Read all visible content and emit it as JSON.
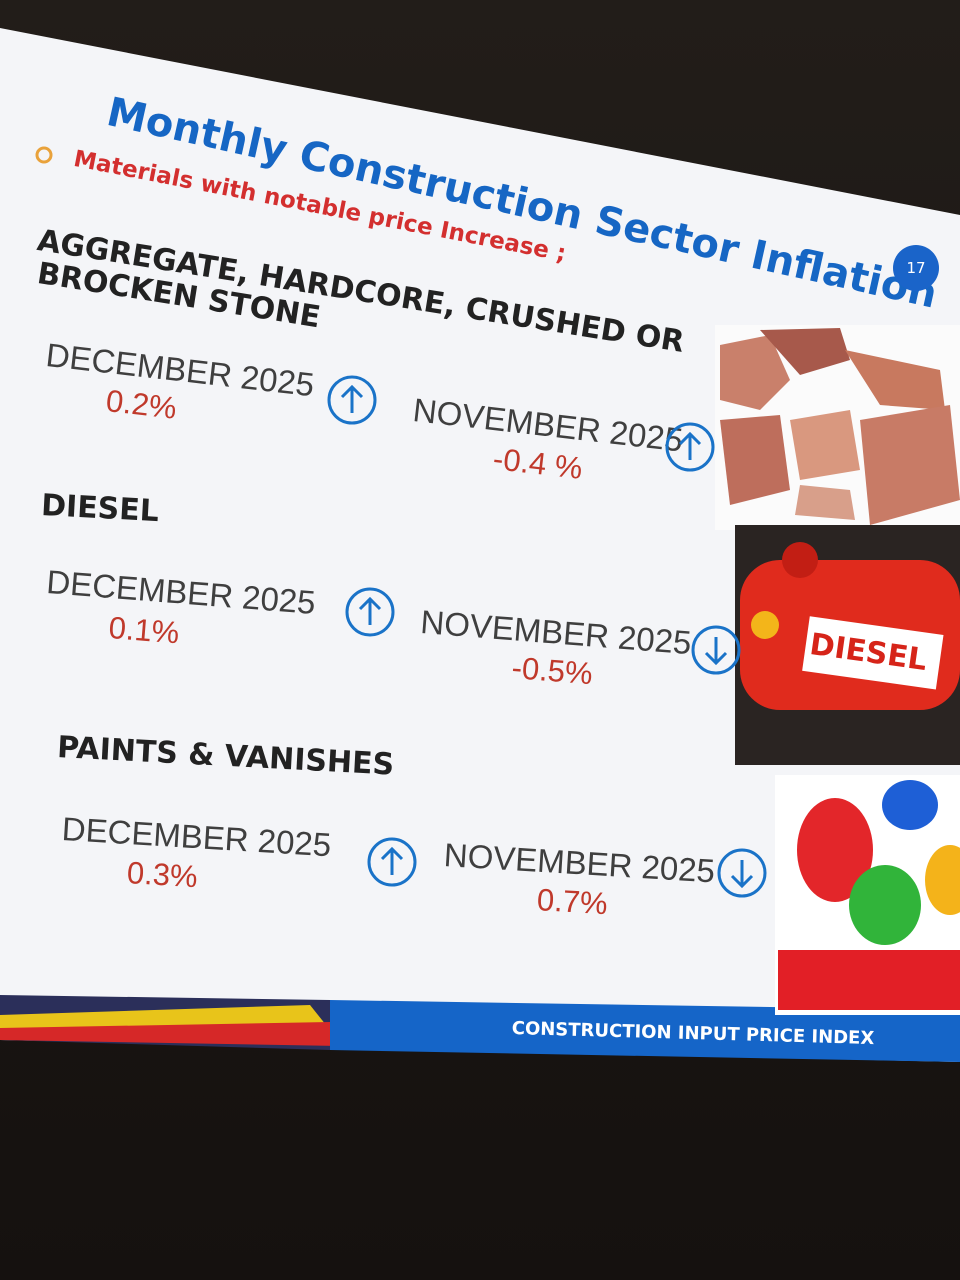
{
  "slide": {
    "title": "Monthly Construction Sector Inflation",
    "subtitle": "Materials with notable price Increase ;",
    "slide_number": "17",
    "sections": [
      {
        "name_lines": [
          "AGGREGATE, HARDCORE, CRUSHED OR",
          "BROCKEN STONE"
        ],
        "december_label": "DECEMBER 2025",
        "december_value": "0.2%",
        "december_arrow": "up",
        "november_label": "NOVEMBER 2025",
        "november_value": "-0.4 %",
        "november_arrow": "up"
      },
      {
        "name_lines": [
          "DIESEL"
        ],
        "december_label": "DECEMBER 2025",
        "december_value": "0.1%",
        "december_arrow": "up",
        "november_label": "NOVEMBER 2025",
        "november_value": "-0.5%",
        "november_arrow": "down",
        "image_text": "DIESEL"
      },
      {
        "name_lines": [
          "PAINTS & VANISHES"
        ],
        "december_label": "DECEMBER 2025",
        "december_value": "0.3%",
        "december_arrow": "up",
        "november_label": "NOVEMBER 2025",
        "november_value": "0.7%",
        "november_arrow": "down"
      }
    ],
    "footer": "CONSTRUCTION INPUT PRICE INDEX"
  }
}
